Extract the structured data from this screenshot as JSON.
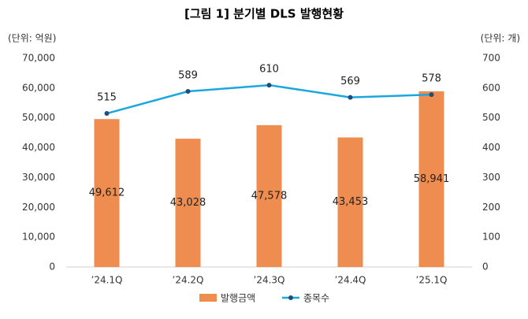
{
  "chart_data": {
    "type": "combo",
    "title": "[그림 1] 분기별 DLS 발행현황",
    "y_unit": "(단위: 억원)",
    "y2_unit": "(단위: 개)",
    "categories": [
      "’24.1Q",
      "’24.2Q",
      "’24.3Q",
      "’24.4Q",
      "’25.1Q"
    ],
    "series": [
      {
        "name": "발행금액",
        "type": "bar",
        "color": "#ef8c4f",
        "values": [
          49612,
          43028,
          47578,
          43453,
          58941
        ],
        "value_labels": [
          "49,612",
          "43,028",
          "47,578",
          "43,453",
          "58,941"
        ]
      },
      {
        "name": "종목수",
        "type": "line",
        "axis": "y2",
        "color": "#1aa7e0",
        "values": [
          515,
          589,
          610,
          569,
          578
        ]
      }
    ],
    "ylim": [
      0,
      70000
    ],
    "yticks": [
      0,
      {
        "value": 10000,
        "label": "10,000"
      },
      {
        "value": 20000,
        "label": "20,000"
      },
      {
        "value": 30000,
        "label": "30,000"
      },
      {
        "value": 40000,
        "label": "40,000"
      },
      {
        "value": 50000,
        "label": "50,000"
      },
      {
        "value": 60000,
        "label": "60,000"
      },
      {
        "value": 70000,
        "label": "70,000"
      }
    ],
    "y2lim": [
      0,
      700
    ],
    "y2ticks": [
      0,
      100,
      200,
      300,
      400,
      500,
      600,
      700
    ],
    "grid": false,
    "legend": "bottom"
  }
}
